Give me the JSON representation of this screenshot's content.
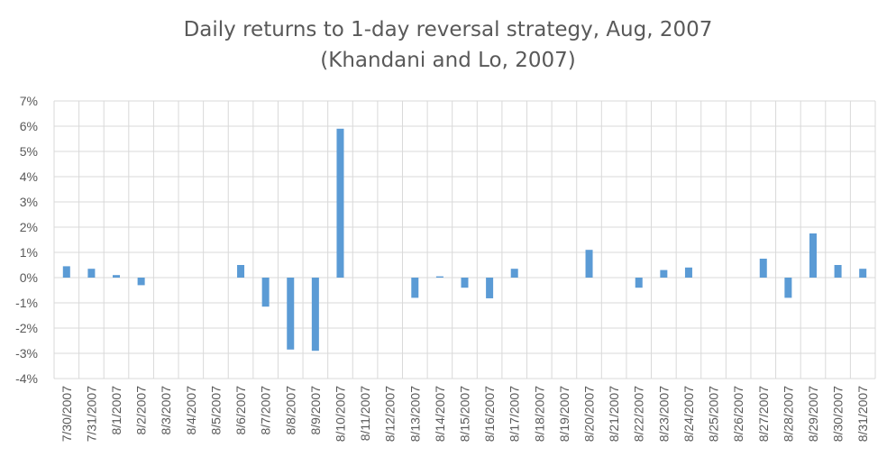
{
  "chart_data": {
    "type": "bar",
    "title": "Daily returns to 1-day reversal strategy, Aug, 2007",
    "subtitle": "(Khandani and Lo, 2007)",
    "xlabel": "",
    "ylabel": "",
    "ylim": [
      -0.04,
      0.07
    ],
    "yticks": [
      {
        "value": 0.07,
        "label": "7%"
      },
      {
        "value": 0.06,
        "label": "6%"
      },
      {
        "value": 0.05,
        "label": "5%"
      },
      {
        "value": 0.04,
        "label": "4%"
      },
      {
        "value": 0.03,
        "label": "3%"
      },
      {
        "value": 0.02,
        "label": "2%"
      },
      {
        "value": 0.01,
        "label": "1%"
      },
      {
        "value": 0.0,
        "label": "0%"
      },
      {
        "value": -0.01,
        "label": "-1%"
      },
      {
        "value": -0.02,
        "label": "-2%"
      },
      {
        "value": -0.03,
        "label": "-3%"
      },
      {
        "value": -0.04,
        "label": "-4%"
      }
    ],
    "grid": true,
    "bar_color": "#5b9bd5",
    "categories": [
      "7/30/2007",
      "7/31/2007",
      "8/1/2007",
      "8/2/2007",
      "8/3/2007",
      "8/4/2007",
      "8/5/2007",
      "8/6/2007",
      "8/7/2007",
      "8/8/2007",
      "8/9/2007",
      "8/10/2007",
      "8/11/2007",
      "8/12/2007",
      "8/13/2007",
      "8/14/2007",
      "8/15/2007",
      "8/16/2007",
      "8/17/2007",
      "8/18/2007",
      "8/19/2007",
      "8/20/2007",
      "8/21/2007",
      "8/22/2007",
      "8/23/2007",
      "8/24/2007",
      "8/25/2007",
      "8/26/2007",
      "8/27/2007",
      "8/28/2007",
      "8/29/2007",
      "8/30/2007",
      "8/31/2007"
    ],
    "values": [
      0.0045,
      0.0035,
      0.001,
      -0.003,
      null,
      null,
      null,
      0.005,
      -0.0115,
      -0.0285,
      -0.029,
      0.059,
      null,
      null,
      -0.008,
      0.0005,
      -0.004,
      -0.0082,
      0.0035,
      null,
      null,
      0.011,
      null,
      -0.004,
      0.003,
      0.004,
      null,
      null,
      0.0075,
      -0.008,
      0.0175,
      0.005,
      0.0035
    ]
  }
}
